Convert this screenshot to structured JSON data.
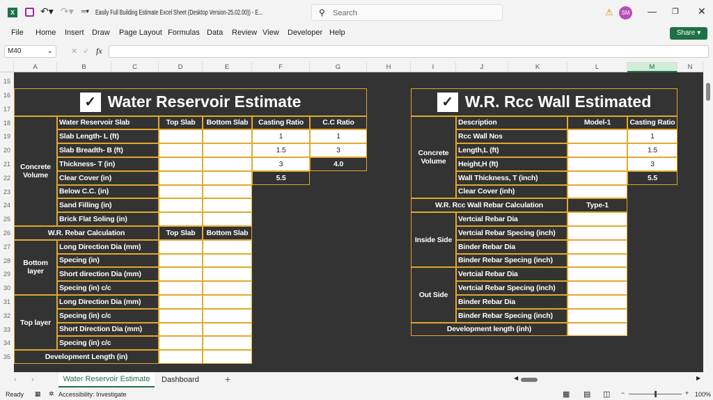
{
  "titlebar": {
    "title": "Easily Full Building Estimate Excel Sheet (Desktop Version-25.02.00))  -  E...",
    "search_placeholder": "Search",
    "user_initials": "SM",
    "share": "Share"
  },
  "menu": [
    "File",
    "Home",
    "Insert",
    "Draw",
    "Page Layout",
    "Formulas",
    "Data",
    "Review",
    "View",
    "Developer",
    "Help"
  ],
  "formula_bar": {
    "name_box": "M40",
    "fx": "fx",
    "value": ""
  },
  "columns": [
    "A",
    "B",
    "C",
    "D",
    "E",
    "F",
    "G",
    "H",
    "I",
    "J",
    "K",
    "L",
    "M",
    "N"
  ],
  "selected_column": "M",
  "rows": [
    "15",
    "16",
    "17",
    "18",
    "19",
    "20",
    "21",
    "22",
    "23",
    "24",
    "25",
    "26",
    "27",
    "28",
    "29",
    "30",
    "31",
    "32",
    "33",
    "34",
    "35"
  ],
  "left": {
    "title": "Water Reservoir Estimate",
    "concrete_volume": "Concrete Volume",
    "header": [
      "Water Reservoir Slab",
      "Top Slab",
      "Bottom Slab",
      "Casting Ratio",
      "C.C Ratio"
    ],
    "labels": [
      "Slab Length- L (ft)",
      "Slab Breadth- B (ft)",
      "Thickness- T (in)",
      "Clear Cover (in)",
      "Below C.C. (in)",
      "Sand Filling (in)",
      "Brick Flat Soling (in)"
    ],
    "casting_ratio": [
      "1",
      "1.5",
      "3",
      "5.5"
    ],
    "cc_ratio": [
      "1",
      "3",
      "4.0"
    ],
    "rebar_header": [
      "W.R. Rebar Calculation",
      "Top Slab",
      "Bottom Slab"
    ],
    "bottom_layer": "Bottom layer",
    "bottom_labels": [
      "Long Direction Dia (mm)",
      "Specing (in)",
      "Short direction  Dia (mm)",
      "Specing (in) c/c"
    ],
    "top_layer": "Top layer",
    "top_labels": [
      "Long Direction Dia (mm)",
      "Specing (in) c/c",
      "Short Direction Dia (mm)",
      "Specing (in) c/c"
    ],
    "development": "Development Length (in)"
  },
  "right": {
    "title": "W.R. Rcc Wall Estimated",
    "concrete_volume": "Concrete Volume",
    "header": [
      "Description",
      "Model-1",
      "Casting Ratio"
    ],
    "labels": [
      " Rcc Wall Nos",
      "Length,L (ft)",
      "Height,H (ft)",
      "Wall Thickness, T (inch)",
      "Clear Cover (inh)"
    ],
    "casting_ratio": [
      "1",
      "1.5",
      "3",
      "5.5"
    ],
    "rebar_header": [
      "W.R. Rcc Wall  Rebar Calculation",
      "Type-1"
    ],
    "inside": "Inside Side",
    "inside_labels": [
      "Vertcial Rebar Dia",
      "Vertcial Rebar Specing (inch)",
      "Binder Rebar Dia",
      "Binder Rebar Specing (inch)"
    ],
    "outside": "Out Side",
    "outside_labels": [
      "Vertcial Rebar Dia",
      "Vertcial Rebar Specing (inch)",
      "Binder Rebar Dia",
      "Binder Rebar Specing (inch)"
    ],
    "development": "Development length (inh)"
  },
  "sheet_tabs": [
    "Water Reservoir Estimate",
    "Dashboard"
  ],
  "active_tab": "Water Reservoir Estimate",
  "status": {
    "ready": "Ready",
    "accessibility": "Accessibility: Investigate",
    "zoom": "100%"
  },
  "colors": {
    "grid_bg": "#333333",
    "border": "#e1a92b",
    "excel_green": "#1e7145"
  }
}
